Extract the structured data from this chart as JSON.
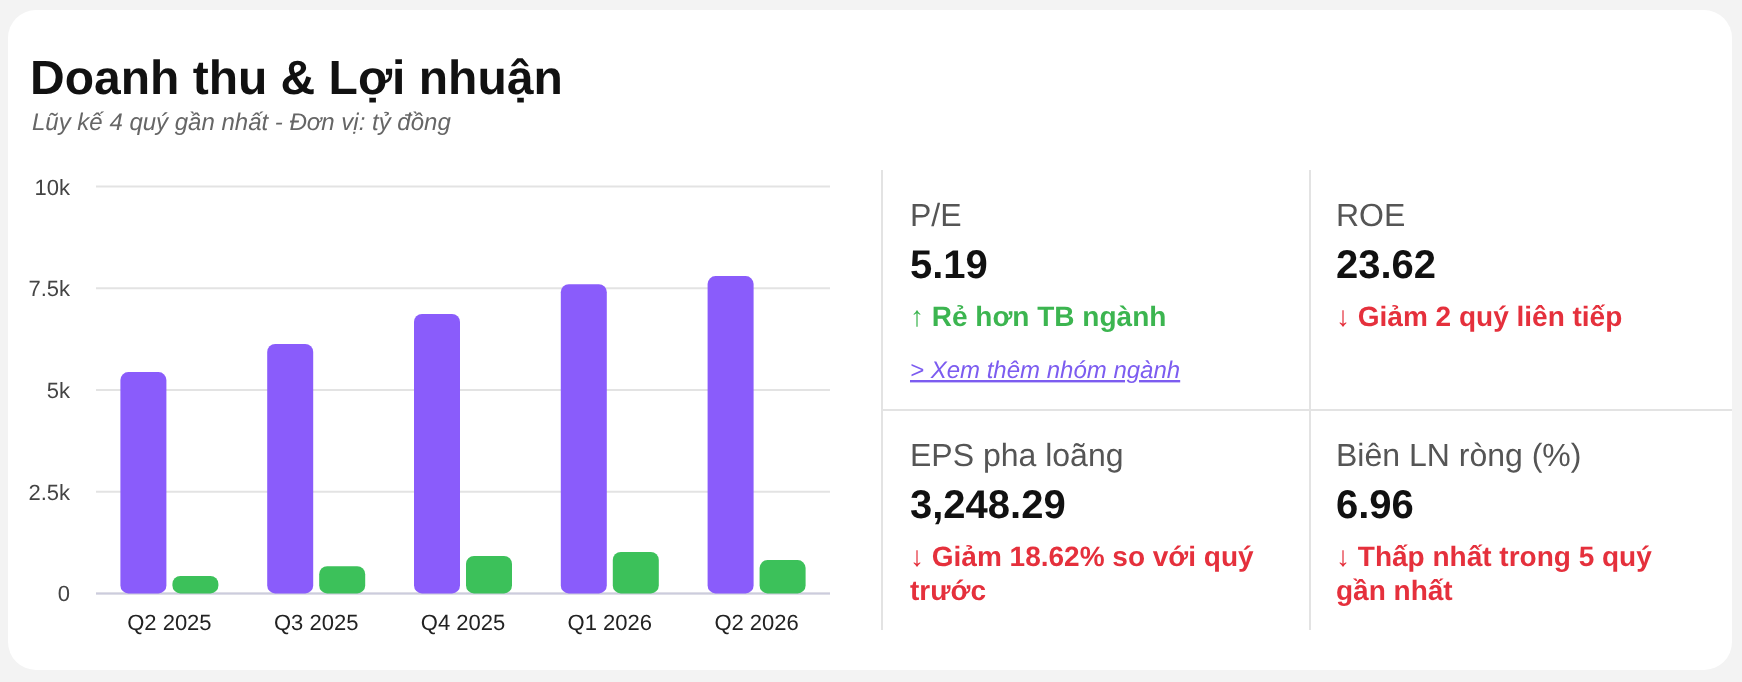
{
  "chart_data": [
    {
      "type": "bar",
      "title": "Doanh thu & Lợi nhuận",
      "subtitle": "Lũy kế 4 quý gần nhất - Đơn vị: tỷ đồng",
      "categories": [
        "Q2 2025",
        "Q3 2025",
        "Q4 2025",
        "Q1 2026",
        "Q2 2026"
      ],
      "series": [
        {
          "color": "#8a5cfb",
          "values": [
            5440,
            6130,
            6870,
            7600,
            7800
          ]
        },
        {
          "color": "#3cc15a",
          "values": [
            430,
            670,
            920,
            1020,
            820
          ]
        }
      ],
      "ylim": [
        0,
        10000
      ],
      "yticks": [
        0,
        {
          "value": 2500,
          "label": "2.5k"
        },
        {
          "value": 5000,
          "label": "5k"
        },
        {
          "value": 7500,
          "label": "7.5k"
        },
        {
          "value": 10000,
          "label": "10k"
        }
      ],
      "grid": "y"
    },
    {
      "type": "other",
      "annotations": [
        "P/E",
        "5.19",
        "↑ Rẻ hơn TB ngành",
        "ROE",
        "23.62",
        "↓ Giảm 2 quý liên tiếp",
        "EPS pha loãng",
        "3,248.29",
        "↓ Giảm 18.62% so với quý trước",
        "Biên LN ròng (%)",
        "6.96",
        "↓ Thấp nhất trong 5 quý gần nhất",
        "> Xem thêm nhóm ngành"
      ]
    }
  ]
}
